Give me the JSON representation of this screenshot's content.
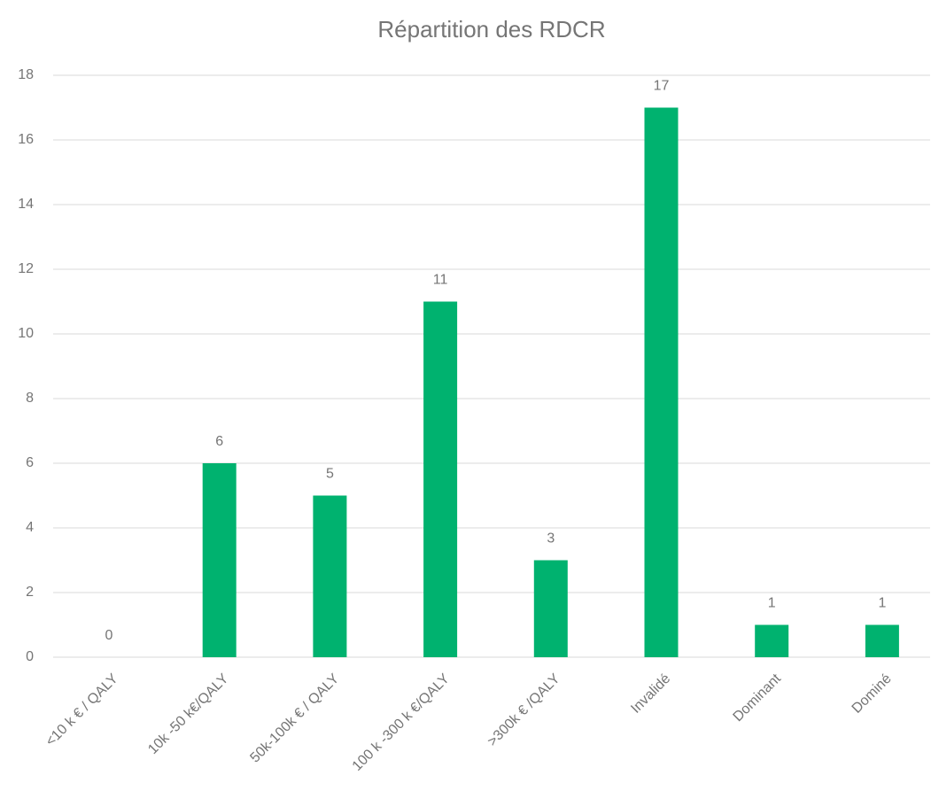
{
  "chart_data": {
    "type": "bar",
    "title": "Répartition des RDCR",
    "categories": [
      "<10 k € / QALY",
      "10k -50 k€/QALY",
      "50k-100k € / QALY",
      "100 k -300 k €/QALY",
      ">300k € /QALY",
      "Invalidé",
      "Dominant",
      "Dominé"
    ],
    "values": [
      0,
      6,
      5,
      11,
      3,
      17,
      1,
      1
    ],
    "color": "#00b26f",
    "ylim": [
      0,
      18
    ],
    "yticks": [
      0,
      2,
      4,
      6,
      8,
      10,
      12,
      14,
      16,
      18
    ],
    "grid": true
  }
}
